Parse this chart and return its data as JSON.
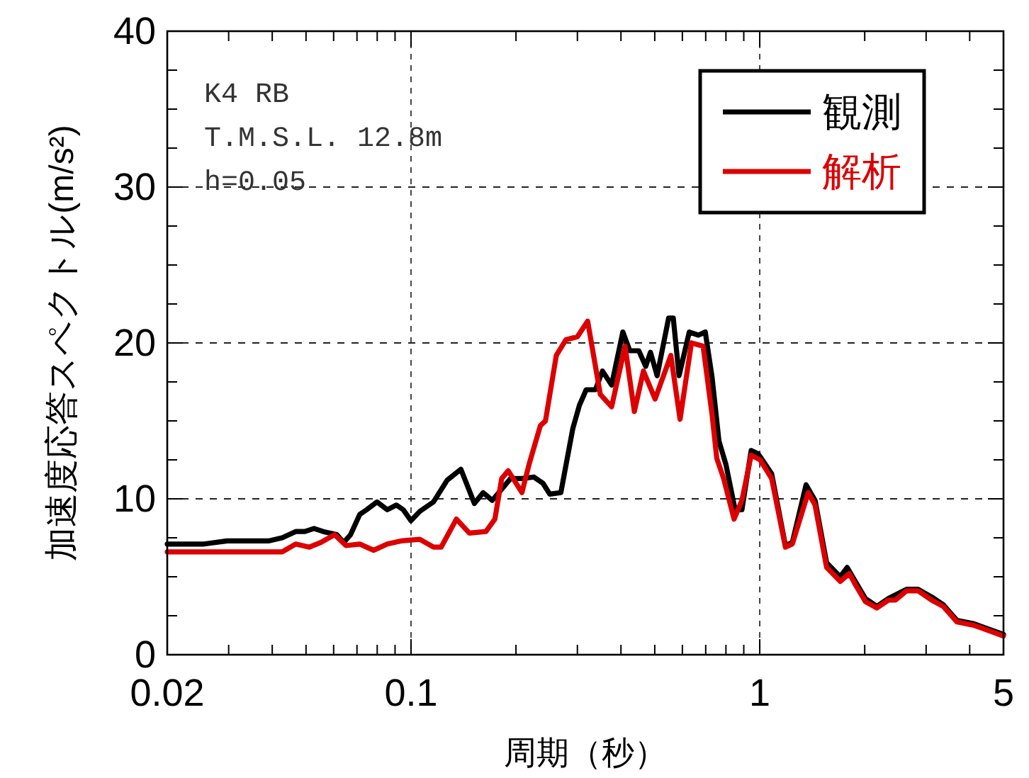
{
  "chart_data": {
    "type": "line",
    "xlabel": "周期（秒）",
    "ylabel": "加速度応答スペクトル(m/s²)",
    "annotations": [
      "K4 RB",
      "T.M.S.L. 12.8m",
      "h=0.05"
    ],
    "log": "x",
    "grid": true,
    "legend": "top right",
    "xlim": [
      0.02,
      5
    ],
    "ylim": [
      0,
      40
    ],
    "xticks": [
      0.02,
      {
        "value": 0.03,
        "label": null
      },
      {
        "value": 0.04,
        "label": null
      },
      {
        "value": 0.05,
        "label": null
      },
      {
        "value": 0.06,
        "label": null
      },
      {
        "value": 0.07,
        "label": null
      },
      {
        "value": 0.08,
        "label": null
      },
      {
        "value": 0.09,
        "label": null
      },
      0.1,
      {
        "value": 0.2,
        "label": null
      },
      {
        "value": 0.3,
        "label": null
      },
      {
        "value": 0.4,
        "label": null
      },
      {
        "value": 0.5,
        "label": null
      },
      {
        "value": 0.6,
        "label": null
      },
      {
        "value": 0.7,
        "label": null
      },
      {
        "value": 0.8,
        "label": null
      },
      {
        "value": 0.9,
        "label": null
      },
      1,
      {
        "value": 2,
        "label": null
      },
      {
        "value": 3,
        "label": null
      },
      {
        "value": 4,
        "label": null
      },
      5
    ],
    "yticks": [
      0,
      {
        "value": 2.5,
        "label": null
      },
      {
        "value": 5,
        "label": null
      },
      {
        "value": 7.5,
        "label": null
      },
      10,
      {
        "value": 12.5,
        "label": null
      },
      {
        "value": 15,
        "label": null
      },
      {
        "value": 17.5,
        "label": null
      },
      20,
      {
        "value": 22.5,
        "label": null
      },
      {
        "value": 25,
        "label": null
      },
      {
        "value": 27.5,
        "label": null
      },
      30,
      {
        "value": 32.5,
        "label": null
      },
      {
        "value": 35,
        "label": null
      },
      {
        "value": 37.5,
        "label": null
      },
      40
    ],
    "series": [
      {
        "name": "観測",
        "color": "#000000",
        "x": [
          0.02,
          0.0255,
          0.0297,
          0.039,
          0.0427,
          0.0467,
          0.0496,
          0.0527,
          0.056,
          0.0613,
          0.0641,
          0.0671,
          0.0713,
          0.0746,
          0.0799,
          0.0855,
          0.0908,
          0.095,
          0.1,
          0.106,
          0.116,
          0.127,
          0.139,
          0.152,
          0.161,
          0.171,
          0.193,
          0.208,
          0.225,
          0.239,
          0.25,
          0.269,
          0.291,
          0.304,
          0.318,
          0.338,
          0.354,
          0.376,
          0.405,
          0.424,
          0.45,
          0.471,
          0.486,
          0.508,
          0.548,
          0.565,
          0.587,
          0.628,
          0.667,
          0.698,
          0.73,
          0.764,
          0.8,
          0.85,
          0.889,
          0.945,
          0.988,
          1.003,
          1.082,
          1.185,
          1.24,
          1.358,
          1.441,
          1.555,
          1.702,
          1.781,
          1.891,
          2.01,
          2.167,
          2.338,
          2.638,
          2.844,
          3.113,
          3.361,
          3.679,
          4.088,
          5
        ],
        "values": [
          7.1,
          7.1,
          7.3,
          7.3,
          7.5,
          7.9,
          7.9,
          8.1,
          7.9,
          7.7,
          7.2,
          7.7,
          9.0,
          9.3,
          9.8,
          9.3,
          9.6,
          9.3,
          8.6,
          9.2,
          9.8,
          11.2,
          11.9,
          9.7,
          10.4,
          9.9,
          11.3,
          11.3,
          11.4,
          11.0,
          10.3,
          10.4,
          14.5,
          16.0,
          17.0,
          17.0,
          18.2,
          17.3,
          20.7,
          19.5,
          19.5,
          18.5,
          19.4,
          17.9,
          21.6,
          21.6,
          17.9,
          20.7,
          20.5,
          20.7,
          17.8,
          13.7,
          12.2,
          9.3,
          9.3,
          13.1,
          12.9,
          12.7,
          11.6,
          7.0,
          7.2,
          10.9,
          9.9,
          5.9,
          5.0,
          5.6,
          4.6,
          3.6,
          3.1,
          3.6,
          4.2,
          4.2,
          3.7,
          3.2,
          2.2,
          2.0,
          1.3
        ]
      },
      {
        "name": "解析",
        "color": "#dc0000",
        "x": [
          0.02,
          0.0427,
          0.0467,
          0.0511,
          0.0551,
          0.0604,
          0.0651,
          0.0713,
          0.0781,
          0.0855,
          0.0936,
          0.106,
          0.116,
          0.122,
          0.135,
          0.147,
          0.164,
          0.174,
          0.182,
          0.19,
          0.208,
          0.218,
          0.235,
          0.243,
          0.261,
          0.278,
          0.3,
          0.321,
          0.349,
          0.376,
          0.411,
          0.437,
          0.464,
          0.501,
          0.556,
          0.591,
          0.637,
          0.688,
          0.73,
          0.753,
          0.788,
          0.844,
          0.889,
          0.945,
          1.003,
          1.082,
          1.185,
          1.24,
          1.377,
          1.441,
          1.555,
          1.702,
          1.807,
          1.891,
          2.01,
          2.167,
          2.338,
          2.447,
          2.638,
          2.844,
          3.113,
          3.361,
          3.679,
          4.088,
          4.343,
          5
        ],
        "values": [
          6.6,
          6.6,
          7.1,
          6.9,
          7.2,
          7.7,
          7.0,
          7.1,
          6.7,
          7.1,
          7.3,
          7.4,
          6.9,
          6.9,
          8.7,
          7.8,
          7.9,
          8.7,
          11.3,
          11.8,
          10.4,
          12.2,
          14.7,
          15.0,
          19.2,
          20.2,
          20.4,
          21.4,
          16.7,
          15.9,
          19.8,
          15.6,
          18.2,
          16.4,
          19.2,
          15.1,
          20.0,
          19.8,
          15.4,
          12.6,
          11.3,
          8.7,
          9.9,
          12.8,
          12.5,
          11.3,
          6.9,
          7.1,
          10.4,
          9.6,
          5.6,
          4.7,
          5.2,
          4.4,
          3.4,
          3.0,
          3.5,
          3.5,
          4.1,
          4.1,
          3.5,
          3.1,
          2.1,
          1.9,
          1.7,
          1.2
        ]
      }
    ]
  }
}
